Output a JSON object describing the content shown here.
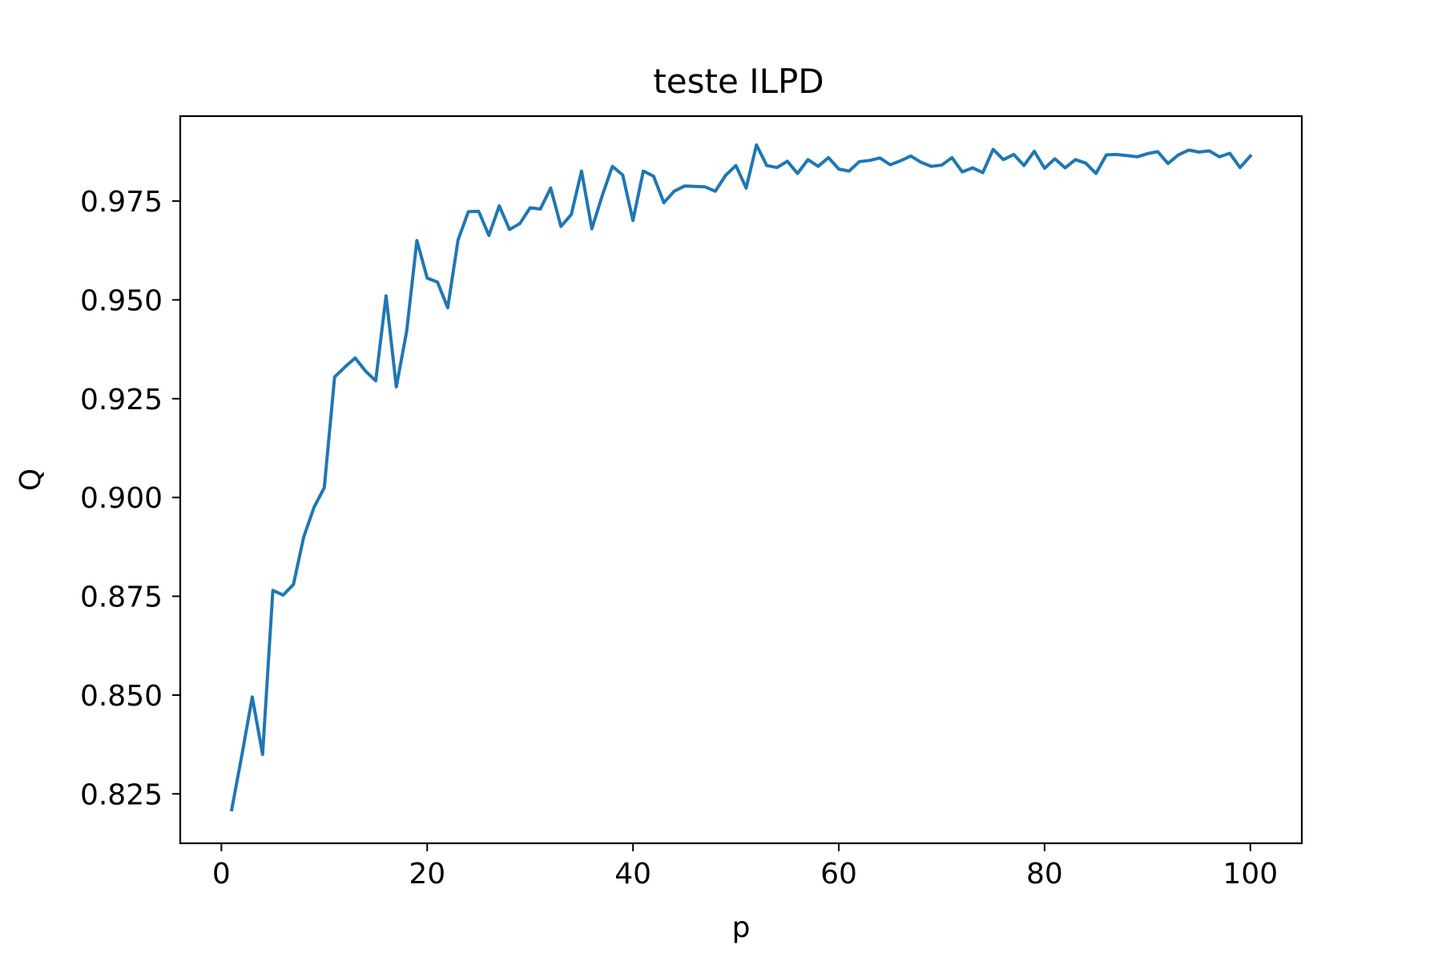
{
  "chart_data": {
    "type": "line",
    "title": "teste ILPD",
    "xlabel": "p",
    "ylabel": "Q",
    "xlim": [
      -4,
      105
    ],
    "ylim": [
      0.8125,
      0.9965
    ],
    "grid": false,
    "x_ticks": [
      {
        "value": 0,
        "label": "0"
      },
      {
        "value": 20,
        "label": "20"
      },
      {
        "value": 40,
        "label": "40"
      },
      {
        "value": 60,
        "label": "60"
      },
      {
        "value": 80,
        "label": "80"
      },
      {
        "value": 100,
        "label": "100"
      }
    ],
    "y_ticks": [
      {
        "value": 0.825,
        "label": "0.825"
      },
      {
        "value": 0.85,
        "label": "0.850"
      },
      {
        "value": 0.875,
        "label": "0.875"
      },
      {
        "value": 0.9,
        "label": "0.900"
      },
      {
        "value": 0.925,
        "label": "0.925"
      },
      {
        "value": 0.95,
        "label": "0.950"
      },
      {
        "value": 0.975,
        "label": "0.975"
      }
    ],
    "series": [
      {
        "color": "#1f77b4",
        "x": [
          1,
          2,
          3,
          4,
          5,
          6,
          7,
          8,
          9,
          10,
          11,
          12,
          13,
          14,
          15,
          16,
          17,
          18,
          19,
          20,
          21,
          22,
          23,
          24,
          25,
          26,
          27,
          28,
          29,
          30,
          31,
          32,
          33,
          34,
          35,
          36,
          37,
          38,
          39,
          40,
          41,
          42,
          43,
          44,
          45,
          46,
          47,
          48,
          49,
          50,
          51,
          52,
          53,
          54,
          55,
          56,
          57,
          58,
          59,
          60,
          61,
          62,
          63,
          64,
          65,
          66,
          67,
          68,
          69,
          70,
          71,
          72,
          73,
          74,
          75,
          76,
          77,
          78,
          79,
          80,
          81,
          82,
          83,
          84,
          85,
          86,
          87,
          88,
          89,
          90,
          91,
          92,
          93,
          94,
          95,
          96,
          97,
          98,
          99,
          100
        ],
        "values": [
          0.821,
          0.835,
          0.8495,
          0.835,
          0.8765,
          0.8753,
          0.878,
          0.89,
          0.8975,
          0.9025,
          0.9305,
          0.933,
          0.9353,
          0.932,
          0.9295,
          0.951,
          0.928,
          0.942,
          0.965,
          0.9555,
          0.9545,
          0.948,
          0.9652,
          0.9723,
          0.9724,
          0.9663,
          0.9738,
          0.9678,
          0.9693,
          0.9733,
          0.973,
          0.9783,
          0.9686,
          0.9716,
          0.9826,
          0.968,
          0.9763,
          0.9838,
          0.9816,
          0.9701,
          0.9826,
          0.9813,
          0.9746,
          0.9775,
          0.9788,
          0.9787,
          0.9786,
          0.9775,
          0.9815,
          0.984,
          0.9783,
          0.9892,
          0.984,
          0.9835,
          0.9851,
          0.982,
          0.9855,
          0.9838,
          0.986,
          0.9831,
          0.9826,
          0.985,
          0.9853,
          0.9859,
          0.9842,
          0.9852,
          0.9864,
          0.9848,
          0.9838,
          0.9841,
          0.986,
          0.9824,
          0.9834,
          0.9822,
          0.9881,
          0.9855,
          0.9868,
          0.984,
          0.9876,
          0.9833,
          0.9857,
          0.9834,
          0.9855,
          0.9846,
          0.982,
          0.9867,
          0.9868,
          0.9865,
          0.9862,
          0.987,
          0.9875,
          0.9845,
          0.9867,
          0.9879,
          0.9874,
          0.9877,
          0.9862,
          0.9871,
          0.9835,
          0.9864
        ]
      }
    ]
  }
}
